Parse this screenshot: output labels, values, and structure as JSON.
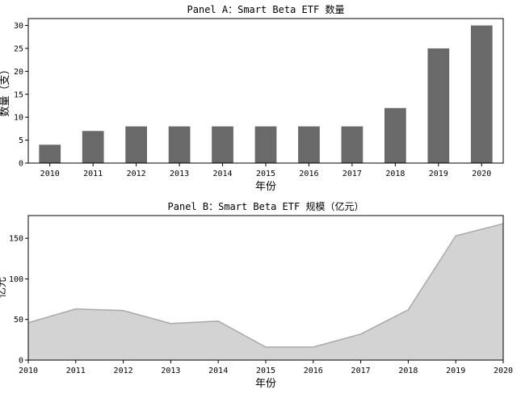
{
  "chart_data": [
    {
      "type": "bar",
      "title": "Panel A：Smart Beta ETF 数量",
      "xlabel": "年份",
      "ylabel": "数量（支）",
      "categories": [
        "2010",
        "2011",
        "2012",
        "2013",
        "2014",
        "2015",
        "2016",
        "2017",
        "2018",
        "2019",
        "2020"
      ],
      "values": [
        4,
        7,
        8,
        8,
        8,
        8,
        8,
        8,
        12,
        25,
        30
      ],
      "ylim": [
        0,
        31.5
      ],
      "yticks": [
        0,
        5,
        10,
        15,
        20,
        25,
        30
      ],
      "color": "#696969",
      "grid": false
    },
    {
      "type": "area",
      "title": "Panel B：Smart Beta ETF 规模（亿元）",
      "xlabel": "年份",
      "ylabel": "亿元",
      "categories": [
        "2010",
        "2011",
        "2012",
        "2013",
        "2014",
        "2015",
        "2016",
        "2017",
        "2018",
        "2019",
        "2020"
      ],
      "values": [
        46,
        63,
        61,
        45,
        48,
        16,
        16,
        32,
        62,
        153,
        168
      ],
      "ylim": [
        0,
        178
      ],
      "yticks": [
        0,
        50,
        100,
        150
      ],
      "fill_color": "#d3d3d3",
      "line_color": "#a9a9a9",
      "grid": false
    }
  ]
}
